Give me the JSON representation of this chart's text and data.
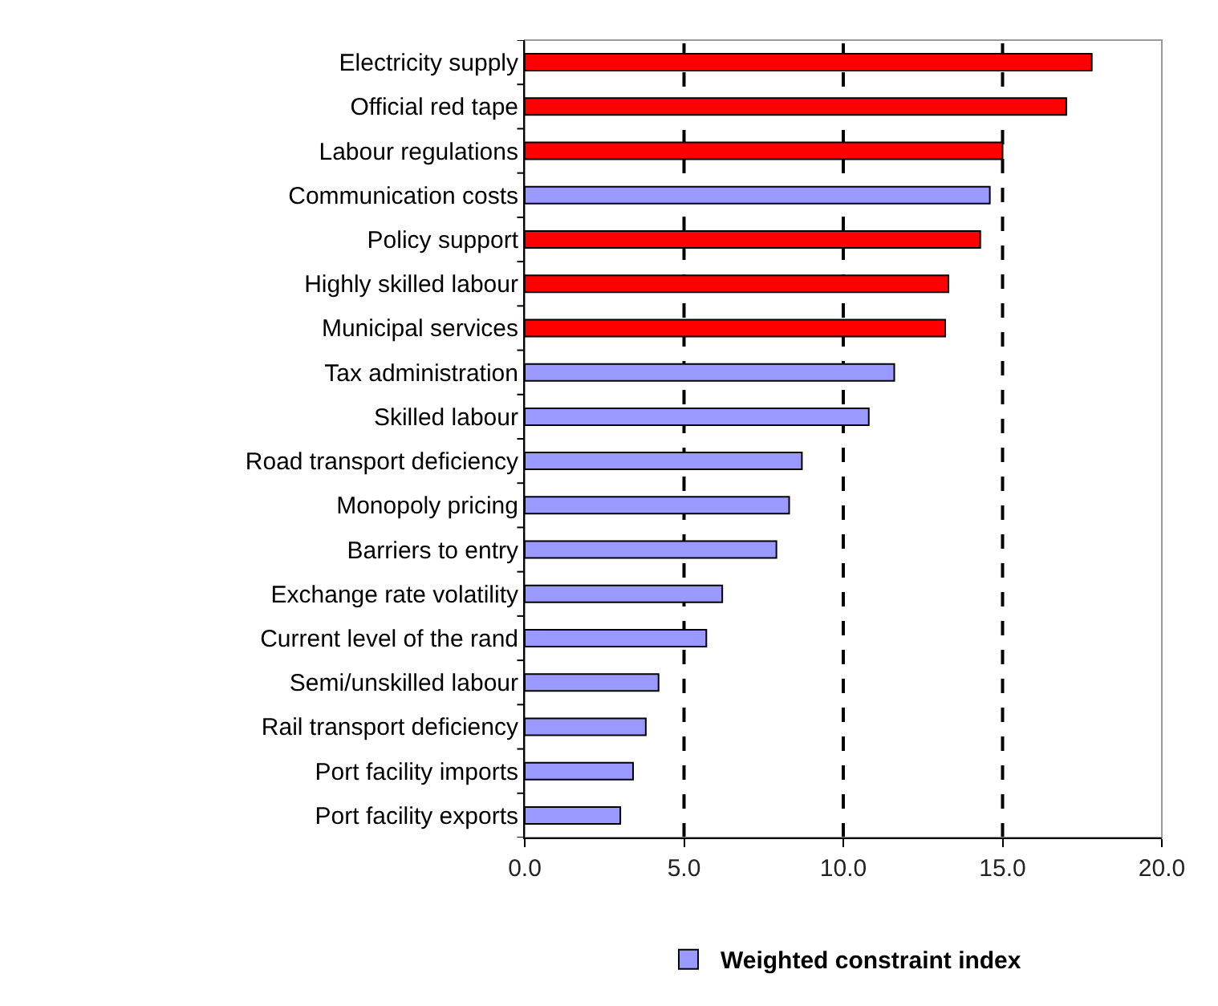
{
  "chart_data": {
    "type": "bar",
    "orientation": "horizontal",
    "categories": [
      "Electricity supply",
      "Official red tape",
      "Labour regulations",
      "Communication costs",
      "Policy support",
      "Highly skilled labour",
      "Municipal services",
      "Tax administration",
      "Skilled labour",
      "Road transport deficiency",
      "Monopoly pricing",
      "Barriers to entry",
      "Exchange rate volatility",
      "Current level of the rand",
      "Semi/unskilled labour",
      "Rail transport deficiency",
      "Port facility imports",
      "Port facility exports"
    ],
    "series": [
      {
        "name": "Weighted constraint index",
        "color": "#9999ff",
        "values": [
          17.8,
          17.0,
          15.0,
          14.6,
          14.3,
          13.3,
          13.2,
          11.6,
          10.8,
          8.7,
          8.3,
          7.9,
          6.2,
          5.7,
          4.2,
          3.8,
          3.4,
          3.0
        ],
        "colors": [
          "#ff0000",
          "#ff0000",
          "#ff0000",
          "#9999ff",
          "#ff0000",
          "#ff0000",
          "#ff0000",
          "#9999ff",
          "#9999ff",
          "#9999ff",
          "#9999ff",
          "#9999ff",
          "#9999ff",
          "#9999ff",
          "#9999ff",
          "#9999ff",
          "#9999ff",
          "#9999ff"
        ]
      }
    ],
    "xlim": [
      0,
      20
    ],
    "xticks": [
      {
        "value": 0,
        "label": "0.0"
      },
      {
        "value": 5,
        "label": "5.0"
      },
      {
        "value": 10,
        "label": "10.0"
      },
      {
        "value": 15,
        "label": "15.0"
      },
      {
        "value": 20,
        "label": "20.0"
      }
    ],
    "grid": "x",
    "legend": "bottom"
  }
}
